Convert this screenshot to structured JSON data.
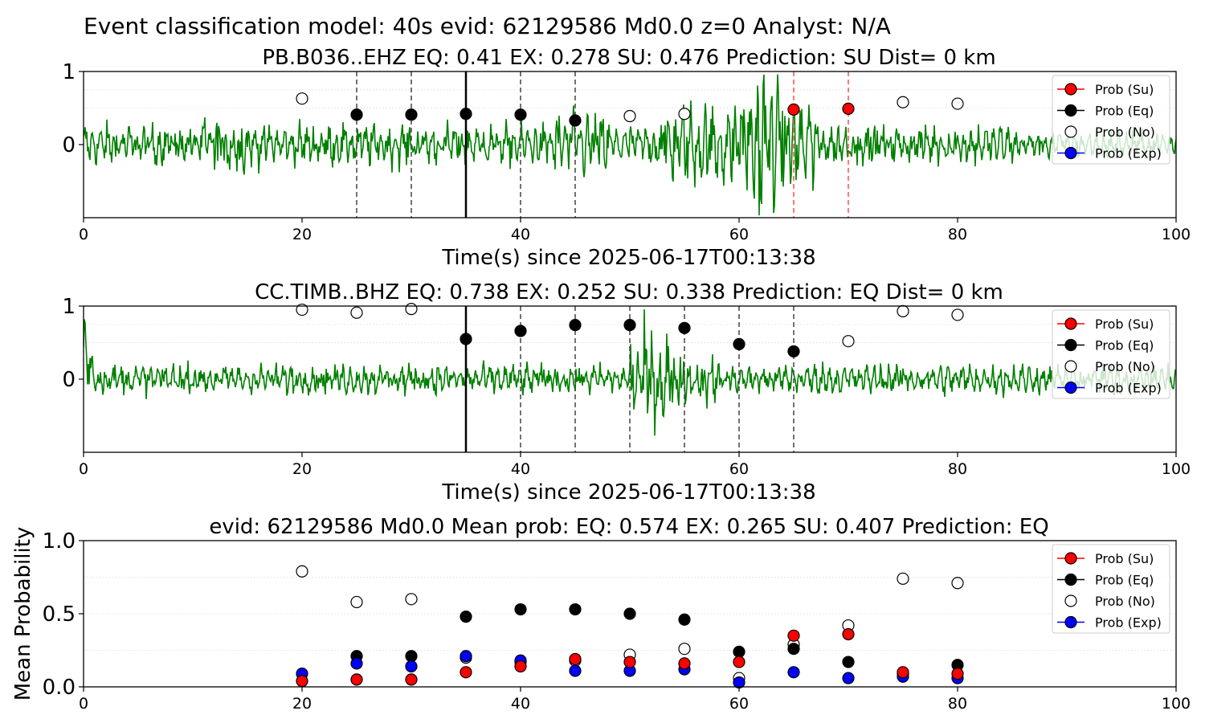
{
  "suptitle": "Event classification model: 40s evid: 62129586 Md0.0 z=0 Analyst: N/A",
  "colors": {
    "su": "#ff0000",
    "eq": "#000000",
    "no": "#ffffff",
    "exp": "#0000ff",
    "trace": "#008000",
    "red_line": "#ff4d4d"
  },
  "chart_data": [
    {
      "type": "line",
      "title": "PB.B036..EHZ   EQ: 0.41  EX: 0.278  SU: 0.476   Prediction: SU    Dist= 0 km",
      "xlabel": "Time(s) since 2025-06-17T00:13:38",
      "ylabel": "",
      "xlim": [
        0,
        100
      ],
      "ylim": [
        -1,
        1
      ],
      "xticks": [
        "0",
        "20",
        "40",
        "60",
        "80",
        "100"
      ],
      "yticks": [
        "1",
        "0"
      ],
      "legend": [
        "Prob (Su)",
        "Prob (Eq)",
        "Prob (No)",
        "Prob (Exp)"
      ],
      "legend_position": "top-right",
      "window_start": 35,
      "eq_lines": [
        25,
        30,
        40,
        45
      ],
      "su_lines": [
        65,
        70
      ],
      "points": [
        {
          "x": 20,
          "y": 0.63,
          "cls": "no"
        },
        {
          "x": 25,
          "y": 0.41,
          "cls": "eq"
        },
        {
          "x": 30,
          "y": 0.41,
          "cls": "eq"
        },
        {
          "x": 35,
          "y": 0.42,
          "cls": "eq"
        },
        {
          "x": 40,
          "y": 0.41,
          "cls": "eq"
        },
        {
          "x": 45,
          "y": 0.33,
          "cls": "eq"
        },
        {
          "x": 50,
          "y": 0.39,
          "cls": "no"
        },
        {
          "x": 55,
          "y": 0.42,
          "cls": "no"
        },
        {
          "x": 65,
          "y": 0.48,
          "cls": "su"
        },
        {
          "x": 70,
          "y": 0.49,
          "cls": "su"
        },
        {
          "x": 75,
          "y": 0.58,
          "cls": "no"
        },
        {
          "x": 80,
          "y": 0.56,
          "cls": "no"
        }
      ]
    },
    {
      "type": "line",
      "title": "CC.TIMB..BHZ   EQ: 0.738  EX: 0.252  SU: 0.338   Prediction: EQ    Dist= 0 km",
      "xlabel": "Time(s) since 2025-06-17T00:13:38",
      "ylabel": "",
      "xlim": [
        0,
        100
      ],
      "ylim": [
        -1,
        1
      ],
      "xticks": [
        "0",
        "20",
        "40",
        "60",
        "80",
        "100"
      ],
      "yticks": [
        "1",
        "0"
      ],
      "legend": [
        "Prob (Su)",
        "Prob (Eq)",
        "Prob (No)",
        "Prob (Exp)"
      ],
      "legend_position": "top-right",
      "window_start": 35,
      "eq_lines": [
        40,
        45,
        50,
        55,
        60,
        65
      ],
      "su_lines": [],
      "points": [
        {
          "x": 20,
          "y": 0.95,
          "cls": "no"
        },
        {
          "x": 25,
          "y": 0.91,
          "cls": "no"
        },
        {
          "x": 30,
          "y": 0.96,
          "cls": "no"
        },
        {
          "x": 35,
          "y": 0.55,
          "cls": "eq"
        },
        {
          "x": 40,
          "y": 0.66,
          "cls": "eq"
        },
        {
          "x": 45,
          "y": 0.74,
          "cls": "eq"
        },
        {
          "x": 50,
          "y": 0.74,
          "cls": "eq"
        },
        {
          "x": 55,
          "y": 0.7,
          "cls": "eq"
        },
        {
          "x": 60,
          "y": 0.48,
          "cls": "eq"
        },
        {
          "x": 65,
          "y": 0.38,
          "cls": "eq"
        },
        {
          "x": 70,
          "y": 0.52,
          "cls": "no"
        },
        {
          "x": 75,
          "y": 0.93,
          "cls": "no"
        },
        {
          "x": 80,
          "y": 0.88,
          "cls": "no"
        }
      ]
    },
    {
      "type": "scatter",
      "title": "evid: 62129586  Md0.0   Mean prob:   EQ: 0.574  EX: 0.265  SU: 0.407   Prediction: EQ",
      "xlabel": "",
      "ylabel": "Mean Probability",
      "xlim": [
        0,
        100
      ],
      "ylim": [
        0,
        1
      ],
      "xticks": [
        "0",
        "20",
        "40",
        "60",
        "80",
        "100"
      ],
      "yticks": [
        "0.0",
        "0.5",
        "1.0"
      ],
      "legend": [
        "Prob (Su)",
        "Prob (Eq)",
        "Prob (No)",
        "Prob (Exp)"
      ],
      "legend_position": "top-right",
      "x": [
        20,
        25,
        30,
        35,
        40,
        45,
        50,
        55,
        60,
        65,
        70,
        75,
        80
      ],
      "series": [
        {
          "key": "no",
          "values": [
            0.79,
            0.58,
            0.6,
            0.2,
            0.17,
            0.18,
            0.22,
            0.26,
            0.06,
            0.29,
            0.42,
            0.74,
            0.71
          ]
        },
        {
          "key": "eq",
          "values": [
            null,
            0.21,
            0.21,
            0.48,
            0.53,
            0.53,
            0.5,
            0.46,
            0.24,
            0.26,
            0.17,
            0.09,
            0.15
          ]
        },
        {
          "key": "exp",
          "values": [
            0.09,
            0.16,
            0.14,
            0.21,
            0.18,
            0.11,
            0.11,
            0.12,
            0.03,
            0.1,
            0.06,
            0.07,
            0.06
          ]
        },
        {
          "key": "su",
          "values": [
            0.04,
            0.05,
            0.05,
            0.1,
            0.14,
            0.19,
            0.17,
            0.16,
            0.17,
            0.35,
            0.36,
            0.1,
            0.09
          ]
        }
      ]
    }
  ]
}
